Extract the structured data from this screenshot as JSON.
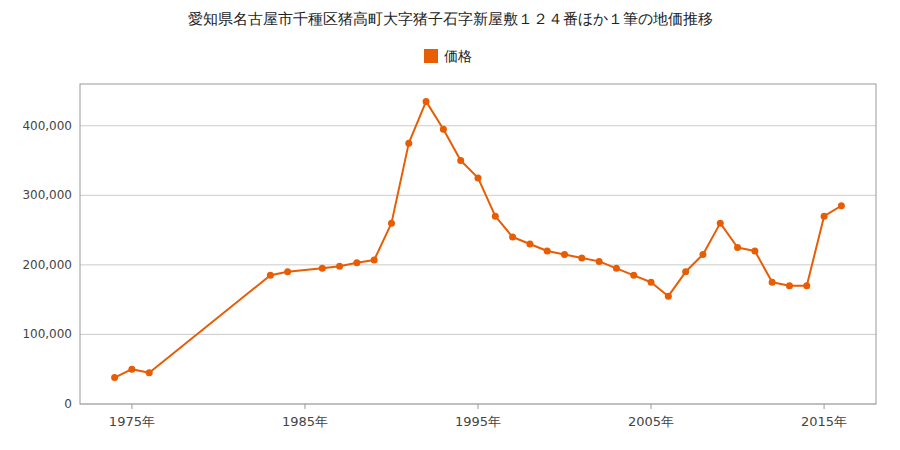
{
  "chart_data": {
    "type": "line",
    "title": "愛知県名古屋市千種区猪高町大字猪子石字新屋敷１２４番ほか１筆の地価推移",
    "x": [
      1974,
      1975,
      1976,
      1983,
      1984,
      1986,
      1987,
      1988,
      1989,
      1990,
      1991,
      1992,
      1993,
      1994,
      1995,
      1996,
      1997,
      1998,
      1999,
      2000,
      2001,
      2002,
      2003,
      2004,
      2005,
      2006,
      2007,
      2008,
      2009,
      2010,
      2011,
      2012,
      2013,
      2014,
      2015,
      2016
    ],
    "series": [
      {
        "name": "価格",
        "color": "#e85d04",
        "marker": "circle",
        "values": [
          38000,
          50000,
          45000,
          185000,
          190000,
          195000,
          198000,
          203000,
          207000,
          260000,
          375000,
          435000,
          395000,
          350000,
          325000,
          270000,
          240000,
          230000,
          220000,
          215000,
          210000,
          205000,
          195000,
          185000,
          175000,
          155000,
          190000,
          215000,
          260000,
          225000,
          220000,
          175000,
          170000,
          170000,
          270000,
          285000
        ]
      }
    ],
    "xlim": [
      1972,
      2018
    ],
    "xticks": [
      {
        "value": 1975,
        "label": "1975年"
      },
      {
        "value": 1985,
        "label": "1985年"
      },
      {
        "value": 1995,
        "label": "1995年"
      },
      {
        "value": 2005,
        "label": "2005年"
      },
      {
        "value": 2015,
        "label": "2015年"
      }
    ],
    "ylim": [
      0,
      460000
    ],
    "yticks": [
      0,
      {
        "value": 100000,
        "label": "100,000"
      },
      {
        "value": 200000,
        "label": "200,000"
      },
      {
        "value": 300000,
        "label": "300,000"
      },
      {
        "value": 400000,
        "label": "400,000"
      }
    ],
    "grid": true,
    "legend": "top"
  }
}
